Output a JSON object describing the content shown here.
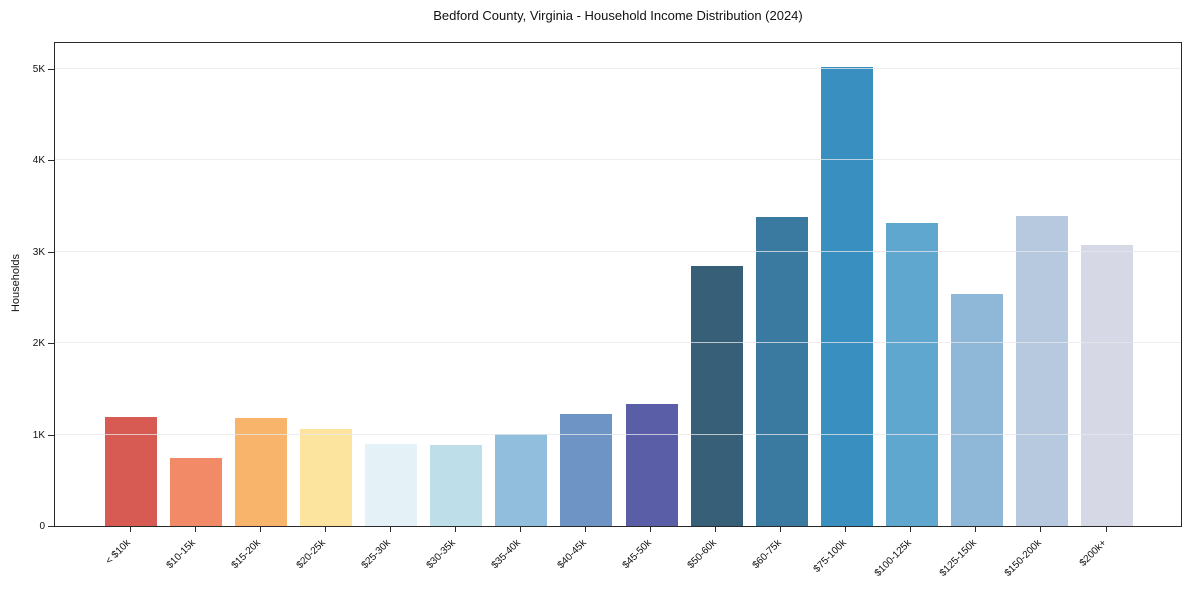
{
  "chart_data": {
    "type": "bar",
    "title": "Bedford County, Virginia - Household Income Distribution (2024)",
    "xlabel": "",
    "ylabel": "Households",
    "categories": [
      "< $10k",
      "$10-15k",
      "$15-20k",
      "$20-25k",
      "$25-30k",
      "$30-35k",
      "$35-40k",
      "$40-45k",
      "$45-50k",
      "$50-60k",
      "$60-75k",
      "$75-100k",
      "$100-125k",
      "$125-150k",
      "$150-200k",
      "$200k+"
    ],
    "values": [
      1190,
      740,
      1180,
      1060,
      900,
      890,
      1010,
      1220,
      1330,
      2840,
      3380,
      5020,
      3310,
      2540,
      3390,
      3070
    ],
    "bar_colors": [
      "#d85b53",
      "#f28a68",
      "#f9b46c",
      "#fde49e",
      "#e4f1f6",
      "#bedfea",
      "#90bedc",
      "#6e93c5",
      "#5a5ea7",
      "#375f78",
      "#3a7aa0",
      "#398fc0",
      "#5fa7ce",
      "#8fb8d8",
      "#b7c9de",
      "#d7d8e6"
    ],
    "ylim": [
      0,
      5300
    ],
    "yticks": [
      0,
      1000,
      2000,
      3000,
      4000,
      5000
    ],
    "ytick_labels": [
      "0",
      "1K",
      "2K",
      "3K",
      "4K",
      "5K"
    ],
    "grid": "horizontal",
    "grid_on": true,
    "legend": "none",
    "background_color": "#ffffff",
    "grid_color": "#e8e8ec",
    "axis_color": "#2a2a2a",
    "text_color": "#111111"
  }
}
